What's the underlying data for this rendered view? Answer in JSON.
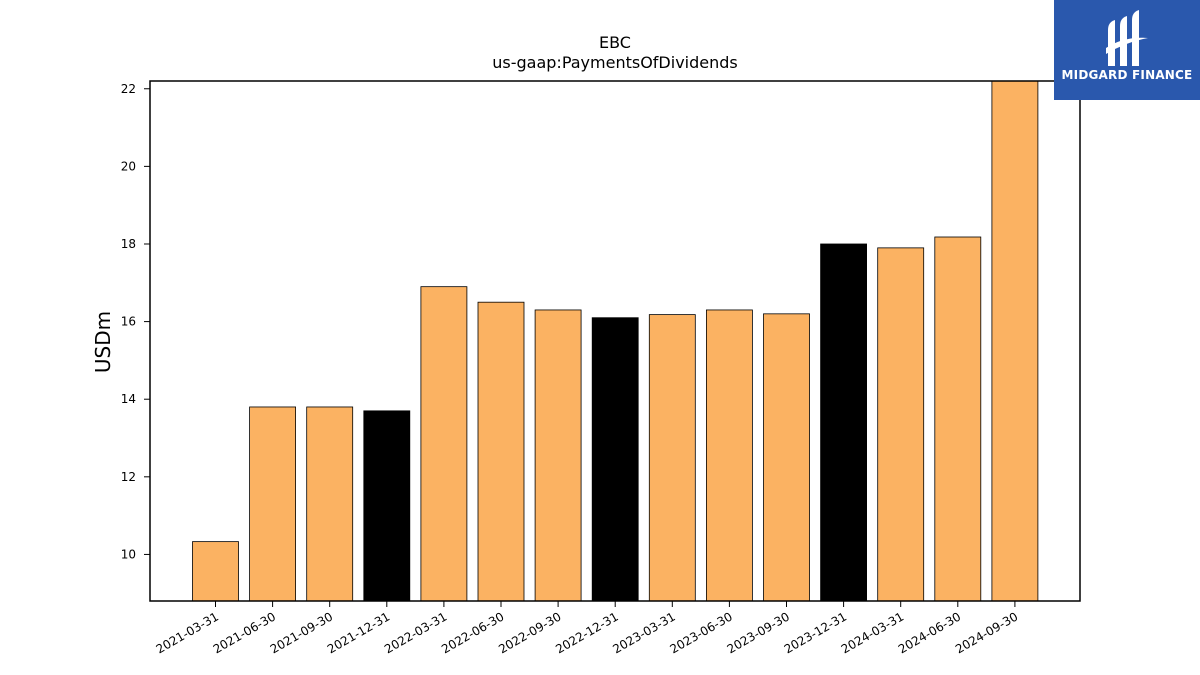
{
  "chart_data": {
    "type": "bar",
    "title": "EBC",
    "subtitle": "us-gaap:PaymentsOfDividends",
    "ylabel": "USDm",
    "xlabel": "",
    "ylim": [
      8.8,
      22.2
    ],
    "yticks": [
      10,
      12,
      14,
      16,
      18,
      20,
      22
    ],
    "grid": false,
    "categories": [
      "2021-03-31",
      "2021-06-30",
      "2021-09-30",
      "2021-12-31",
      "2022-03-31",
      "2022-06-30",
      "2022-09-30",
      "2022-12-31",
      "2023-03-31",
      "2023-06-30",
      "2023-09-30",
      "2023-12-31",
      "2024-03-31",
      "2024-06-30",
      "2024-09-30"
    ],
    "values": [
      10.33,
      13.8,
      13.8,
      13.7,
      16.9,
      16.5,
      16.3,
      16.1,
      16.18,
      16.3,
      16.2,
      18.0,
      17.9,
      18.18,
      22.3
    ],
    "highlighted": [
      "2021-12-31",
      "2022-12-31",
      "2023-12-31"
    ],
    "colors": {
      "bar": "#fbb262",
      "highlight": "#000000",
      "edge": "#000000"
    }
  },
  "logo": {
    "text": "MIDGARD FINANCE",
    "background": "#2a58ad"
  }
}
